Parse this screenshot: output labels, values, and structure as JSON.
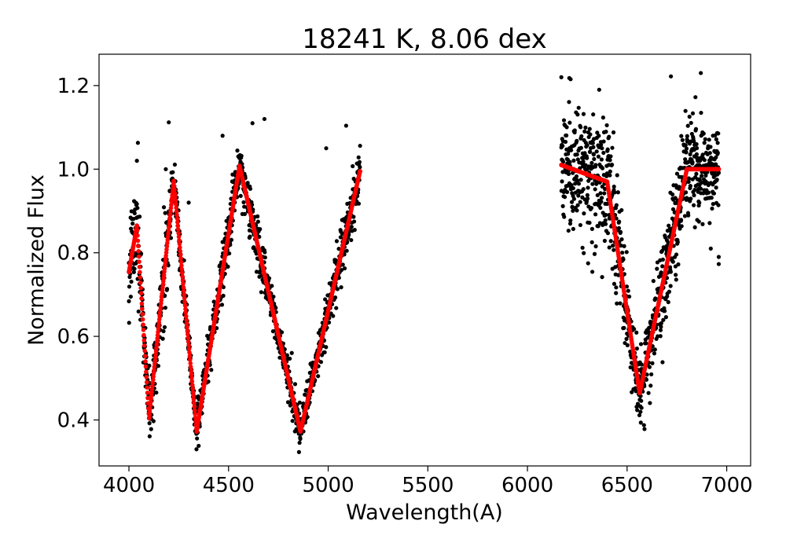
{
  "chart_data": {
    "type": "scatter",
    "title": "18241 K, 8.06 dex",
    "xlabel": "Wavelength(A)",
    "ylabel": "Normalized Flux",
    "xlim": [
      3850,
      7120
    ],
    "ylim": [
      0.29,
      1.275
    ],
    "xticks": [
      4000,
      4500,
      5000,
      5500,
      6000,
      6500,
      7000
    ],
    "yticks": [
      0.4,
      0.6,
      0.8,
      1.0,
      1.2
    ],
    "xtick_labels": [
      "4000",
      "4500",
      "5000",
      "5500",
      "6000",
      "6500",
      "7000"
    ],
    "ytick_labels": [
      "0.4",
      "0.6",
      "0.8",
      "1.0",
      "1.2"
    ],
    "grid": false,
    "legend": "none",
    "series": [
      {
        "role": "observed",
        "color": "#000000",
        "segments": [
          [
            4000,
            5160
          ],
          [
            6170,
            6960
          ]
        ],
        "points": [
          [
            4000,
            0.684
          ],
          [
            4040,
            1.02
          ],
          [
            4045,
            1.063
          ],
          [
            4100,
            0.42
          ],
          [
            4185,
            1.0
          ],
          [
            4200,
            1.112
          ],
          [
            4300,
            0.92
          ],
          [
            4345,
            0.37
          ],
          [
            4350,
            0.338
          ],
          [
            4470,
            1.08
          ],
          [
            4620,
            1.11
          ],
          [
            4680,
            1.12
          ],
          [
            4860,
            0.388
          ],
          [
            4865,
            0.367
          ],
          [
            4990,
            1.05
          ],
          [
            5090,
            1.104
          ],
          [
            5150,
            0.95
          ],
          [
            6170,
            1.22
          ],
          [
            6210,
            1.218
          ],
          [
            6230,
            0.857
          ],
          [
            6300,
            1.0
          ],
          [
            6360,
            1.19
          ],
          [
            6440,
            0.86
          ],
          [
            6560,
            0.485
          ],
          [
            6563,
            0.464
          ],
          [
            6700,
            0.83
          ],
          [
            6720,
            1.222
          ],
          [
            6870,
            1.23
          ],
          [
            6920,
            0.81
          ],
          [
            6960,
            0.773
          ],
          [
            6960,
            0.79
          ]
        ]
      },
      {
        "role": "model",
        "color": "#ff0000",
        "segments": [
          [
            4000,
            5160
          ],
          [
            6170,
            6960
          ]
        ],
        "points": [
          [
            4000,
            0.754
          ],
          [
            4040,
            0.865
          ],
          [
            4101,
            0.404
          ],
          [
            4225,
            0.972
          ],
          [
            4340,
            0.372
          ],
          [
            4555,
            1.008
          ],
          [
            4861,
            0.372
          ],
          [
            5160,
            0.995
          ],
          [
            6170,
            1.01
          ],
          [
            6400,
            0.97
          ],
          [
            6563,
            0.464
          ],
          [
            6800,
            1.0
          ],
          [
            6960,
            1.0
          ]
        ]
      }
    ]
  }
}
